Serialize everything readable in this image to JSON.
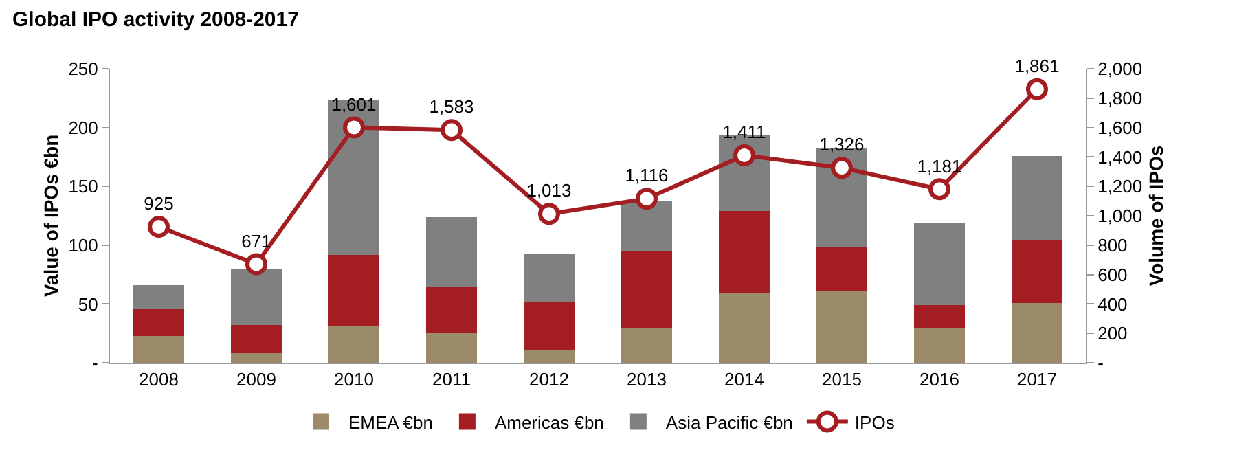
{
  "chart_data": {
    "type": "bar",
    "title": "Global IPO activity 2008-2017",
    "ylabel": "Value of IPOs €bn",
    "y2label": "Volume of IPOs",
    "categories": [
      "2008",
      "2009",
      "2010",
      "2011",
      "2012",
      "2013",
      "2014",
      "2015",
      "2016",
      "2017"
    ],
    "stacked": true,
    "series": [
      {
        "name": "EMEA €bn",
        "color": "#9b8b6b",
        "values": [
          23,
          8,
          31,
          25,
          11,
          29,
          59,
          61,
          30,
          51
        ]
      },
      {
        "name": "Americas €bn",
        "color": "#a31d21",
        "values": [
          23,
          24,
          61,
          40,
          41,
          66,
          70,
          38,
          19,
          53
        ]
      },
      {
        "name": "Asia Pacific €bn",
        "color": "#808080",
        "values": [
          20,
          48,
          131,
          59,
          41,
          42,
          65,
          84,
          70,
          72
        ]
      },
      {
        "name": "IPOs",
        "type": "line",
        "axis": "y2",
        "color": "#a31d21",
        "marker": "circle",
        "values": [
          925,
          671,
          1601,
          1583,
          1013,
          1116,
          1411,
          1326,
          1181,
          1861
        ],
        "value_labels": [
          "925",
          "671",
          "1,601",
          "1,583",
          "1,013",
          "1,116",
          "1,411",
          "1,326",
          "1,181",
          "1,861"
        ]
      }
    ],
    "ylim": [
      0,
      250
    ],
    "yticks": [
      {
        "value": 0,
        "label": "-"
      },
      50,
      100,
      150,
      200,
      250
    ],
    "y2lim": [
      0,
      2000
    ],
    "y2ticks": [
      {
        "value": 0,
        "label": "-"
      },
      {
        "value": 200,
        "label": "200"
      },
      {
        "value": 400,
        "label": "400"
      },
      {
        "value": 600,
        "label": "600"
      },
      {
        "value": 800,
        "label": "800"
      },
      {
        "value": 1000,
        "label": "1,000"
      },
      {
        "value": 1200,
        "label": "1,200"
      },
      {
        "value": 1400,
        "label": "1,400"
      },
      {
        "value": 1600,
        "label": "1,600"
      },
      {
        "value": 1800,
        "label": "1,800"
      },
      {
        "value": 2000,
        "label": "2,000"
      }
    ],
    "grid": false,
    "legend": "bottom"
  }
}
